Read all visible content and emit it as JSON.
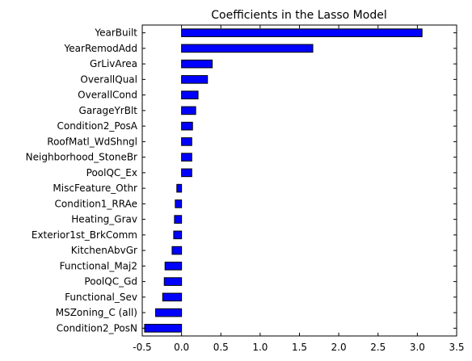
{
  "chart_data": {
    "type": "bar",
    "orientation": "horizontal",
    "title": "Coefficients in the Lasso Model",
    "xlabel": "",
    "ylabel": "",
    "xlim": [
      -0.5,
      3.5
    ],
    "xticks": [
      "-0.5",
      "0.0",
      "0.5",
      "1.0",
      "1.5",
      "2.0",
      "2.5",
      "3.0",
      "3.5"
    ],
    "grid": false,
    "legend": "none",
    "colors": {
      "bar_fill": "#0000ff",
      "bar_edge": "#000000",
      "axis": "#000000",
      "background": "#ffffff"
    },
    "categories": [
      "YearBuilt",
      "YearRemodAdd",
      "GrLivArea",
      "OverallQual",
      "OverallCond",
      "GarageYrBlt",
      "Condition2_PosA",
      "RoofMatl_WdShngl",
      "Neighborhood_StoneBr",
      "PoolQC_Ex",
      "MiscFeature_Othr",
      "Condition1_RRAe",
      "Heating_Grav",
      "Exterior1st_BrkComm",
      "KitchenAbvGr",
      "Functional_Maj2",
      "PoolQC_Gd",
      "Functional_Sev",
      "MSZoning_C (all)",
      "Condition2_PosN"
    ],
    "values": [
      3.06,
      1.67,
      0.39,
      0.33,
      0.21,
      0.18,
      0.14,
      0.13,
      0.13,
      0.13,
      -0.06,
      -0.08,
      -0.09,
      -0.1,
      -0.12,
      -0.21,
      -0.22,
      -0.24,
      -0.33,
      -0.47
    ]
  }
}
